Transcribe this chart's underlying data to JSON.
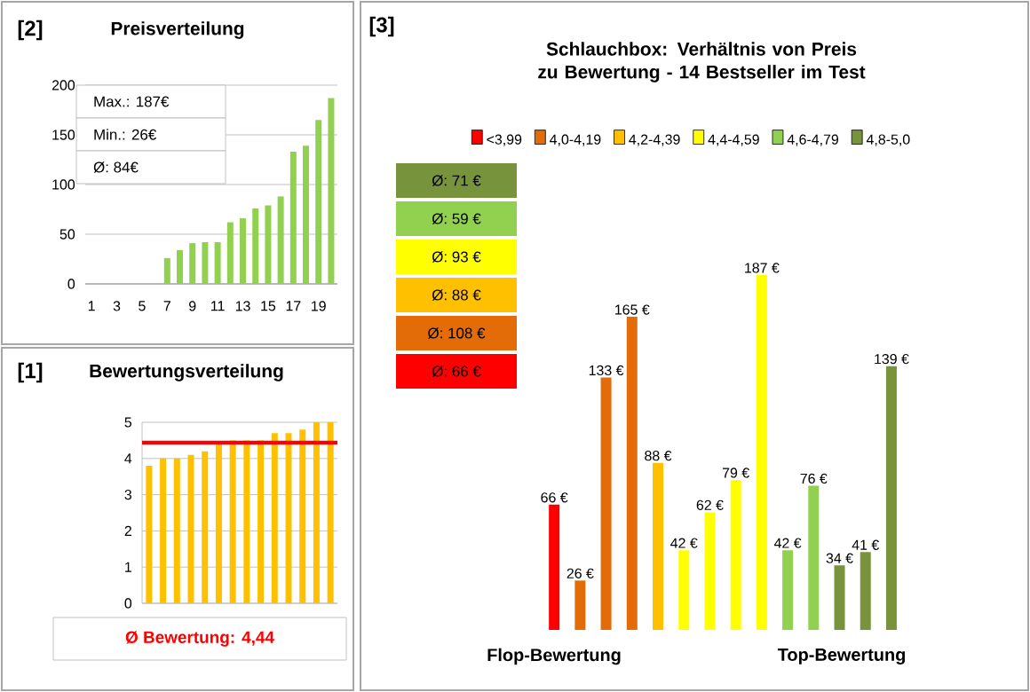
{
  "chart_data": [
    {
      "type": "bar",
      "title": "Preisverteilung",
      "annotations": [
        "[2]",
        "Max.: 187€",
        "Min.: 26€",
        "Ø: 84€"
      ],
      "categories": [
        "1",
        null,
        "3",
        null,
        "5",
        null,
        "7",
        null,
        "9",
        null,
        "11",
        null,
        "13",
        null,
        "15",
        null,
        "17",
        null,
        "19",
        null
      ],
      "values": [
        null,
        null,
        null,
        null,
        null,
        null,
        26,
        34,
        41,
        42,
        42,
        62,
        66,
        76,
        79,
        88,
        133,
        139,
        165,
        187
      ],
      "color": "#92d050",
      "ylim": [
        0,
        200
      ],
      "yticks": [
        0,
        50,
        100,
        150,
        200
      ],
      "grid": "y"
    },
    {
      "type": "bar",
      "title": "Bewertungsverteilung",
      "annotations": [
        "[1]"
      ],
      "categories": [
        null,
        null,
        null,
        null,
        null,
        null,
        null,
        null,
        null,
        null,
        null,
        null,
        null,
        null
      ],
      "values": [
        3.8,
        4.0,
        4.0,
        4.1,
        4.2,
        4.4,
        4.5,
        4.5,
        4.5,
        4.7,
        4.7,
        4.8,
        5.0,
        5.0
      ],
      "color": "#ffc000",
      "ylim": [
        0,
        5
      ],
      "yticks": [
        0,
        1,
        2,
        3,
        4,
        5
      ],
      "grid": "y",
      "tick_labels": "y",
      "ref_lines": [
        {
          "axis": "y",
          "value": 4.44,
          "label": "Ø Bewertung: 4,44",
          "color": "#ff0000"
        }
      ]
    },
    {
      "type": "bar",
      "title": "Schlauchbox: Verhältnis von Preis zu Bewertung - 14 Bestseller im Test",
      "annotations": [
        "[3]",
        "Ø: 71 €",
        "Ø: 59 €",
        "Ø: 93 €",
        "Ø: 88 €",
        "Ø: 108 €",
        "Ø: 66 €",
        "Flop-Bewertung",
        "Top-Bewertung"
      ],
      "categories": [
        null,
        null,
        null,
        null,
        null,
        null,
        null,
        null,
        null,
        null,
        null,
        null,
        null,
        null
      ],
      "legend": "top",
      "tick_labels": false,
      "stacked": true,
      "series": [
        {
          "name": "<3,99",
          "color": "#ff0000",
          "values": [
            66,
            null,
            null,
            null,
            null,
            null,
            null,
            null,
            null,
            null,
            null,
            null,
            null,
            null
          ],
          "value_labels": [
            "66 €",
            null,
            null,
            null,
            null,
            null,
            null,
            null,
            null,
            null,
            null,
            null,
            null,
            null
          ]
        },
        {
          "name": "4,0-4,19",
          "color": "#e36c09",
          "values": [
            null,
            26,
            133,
            165,
            null,
            null,
            null,
            null,
            null,
            null,
            null,
            null,
            null,
            null
          ],
          "value_labels": [
            null,
            "26 €",
            "133 €",
            "165 €",
            null,
            null,
            null,
            null,
            null,
            null,
            null,
            null,
            null,
            null
          ]
        },
        {
          "name": "4,2-4,39",
          "color": "#ffc000",
          "values": [
            null,
            null,
            null,
            null,
            88,
            null,
            null,
            null,
            null,
            null,
            null,
            null,
            null,
            null
          ],
          "value_labels": [
            null,
            null,
            null,
            null,
            "88 €",
            null,
            null,
            null,
            null,
            null,
            null,
            null,
            null,
            null
          ]
        },
        {
          "name": "4,4-4,59",
          "color": "#ffff00",
          "values": [
            null,
            null,
            null,
            null,
            null,
            42,
            62,
            79,
            187,
            null,
            null,
            null,
            null,
            null
          ],
          "value_labels": [
            null,
            null,
            null,
            null,
            null,
            "42 €",
            "62 €",
            "79 €",
            "187 €",
            null,
            null,
            null,
            null,
            null
          ]
        },
        {
          "name": "4,6-4,79",
          "color": "#92d050",
          "values": [
            null,
            null,
            null,
            null,
            null,
            null,
            null,
            null,
            null,
            42,
            76,
            null,
            null,
            null
          ],
          "value_labels": [
            null,
            null,
            null,
            null,
            null,
            null,
            null,
            null,
            null,
            "42 €",
            "76 €",
            null,
            null,
            null
          ]
        },
        {
          "name": "4,8-5,0",
          "color": "#77933c",
          "values": [
            null,
            null,
            null,
            null,
            null,
            null,
            null,
            null,
            null,
            null,
            null,
            34,
            41,
            139
          ],
          "value_labels": [
            null,
            null,
            null,
            null,
            null,
            null,
            null,
            null,
            null,
            null,
            null,
            "34 €",
            "41 €",
            "139 €"
          ]
        }
      ]
    }
  ]
}
